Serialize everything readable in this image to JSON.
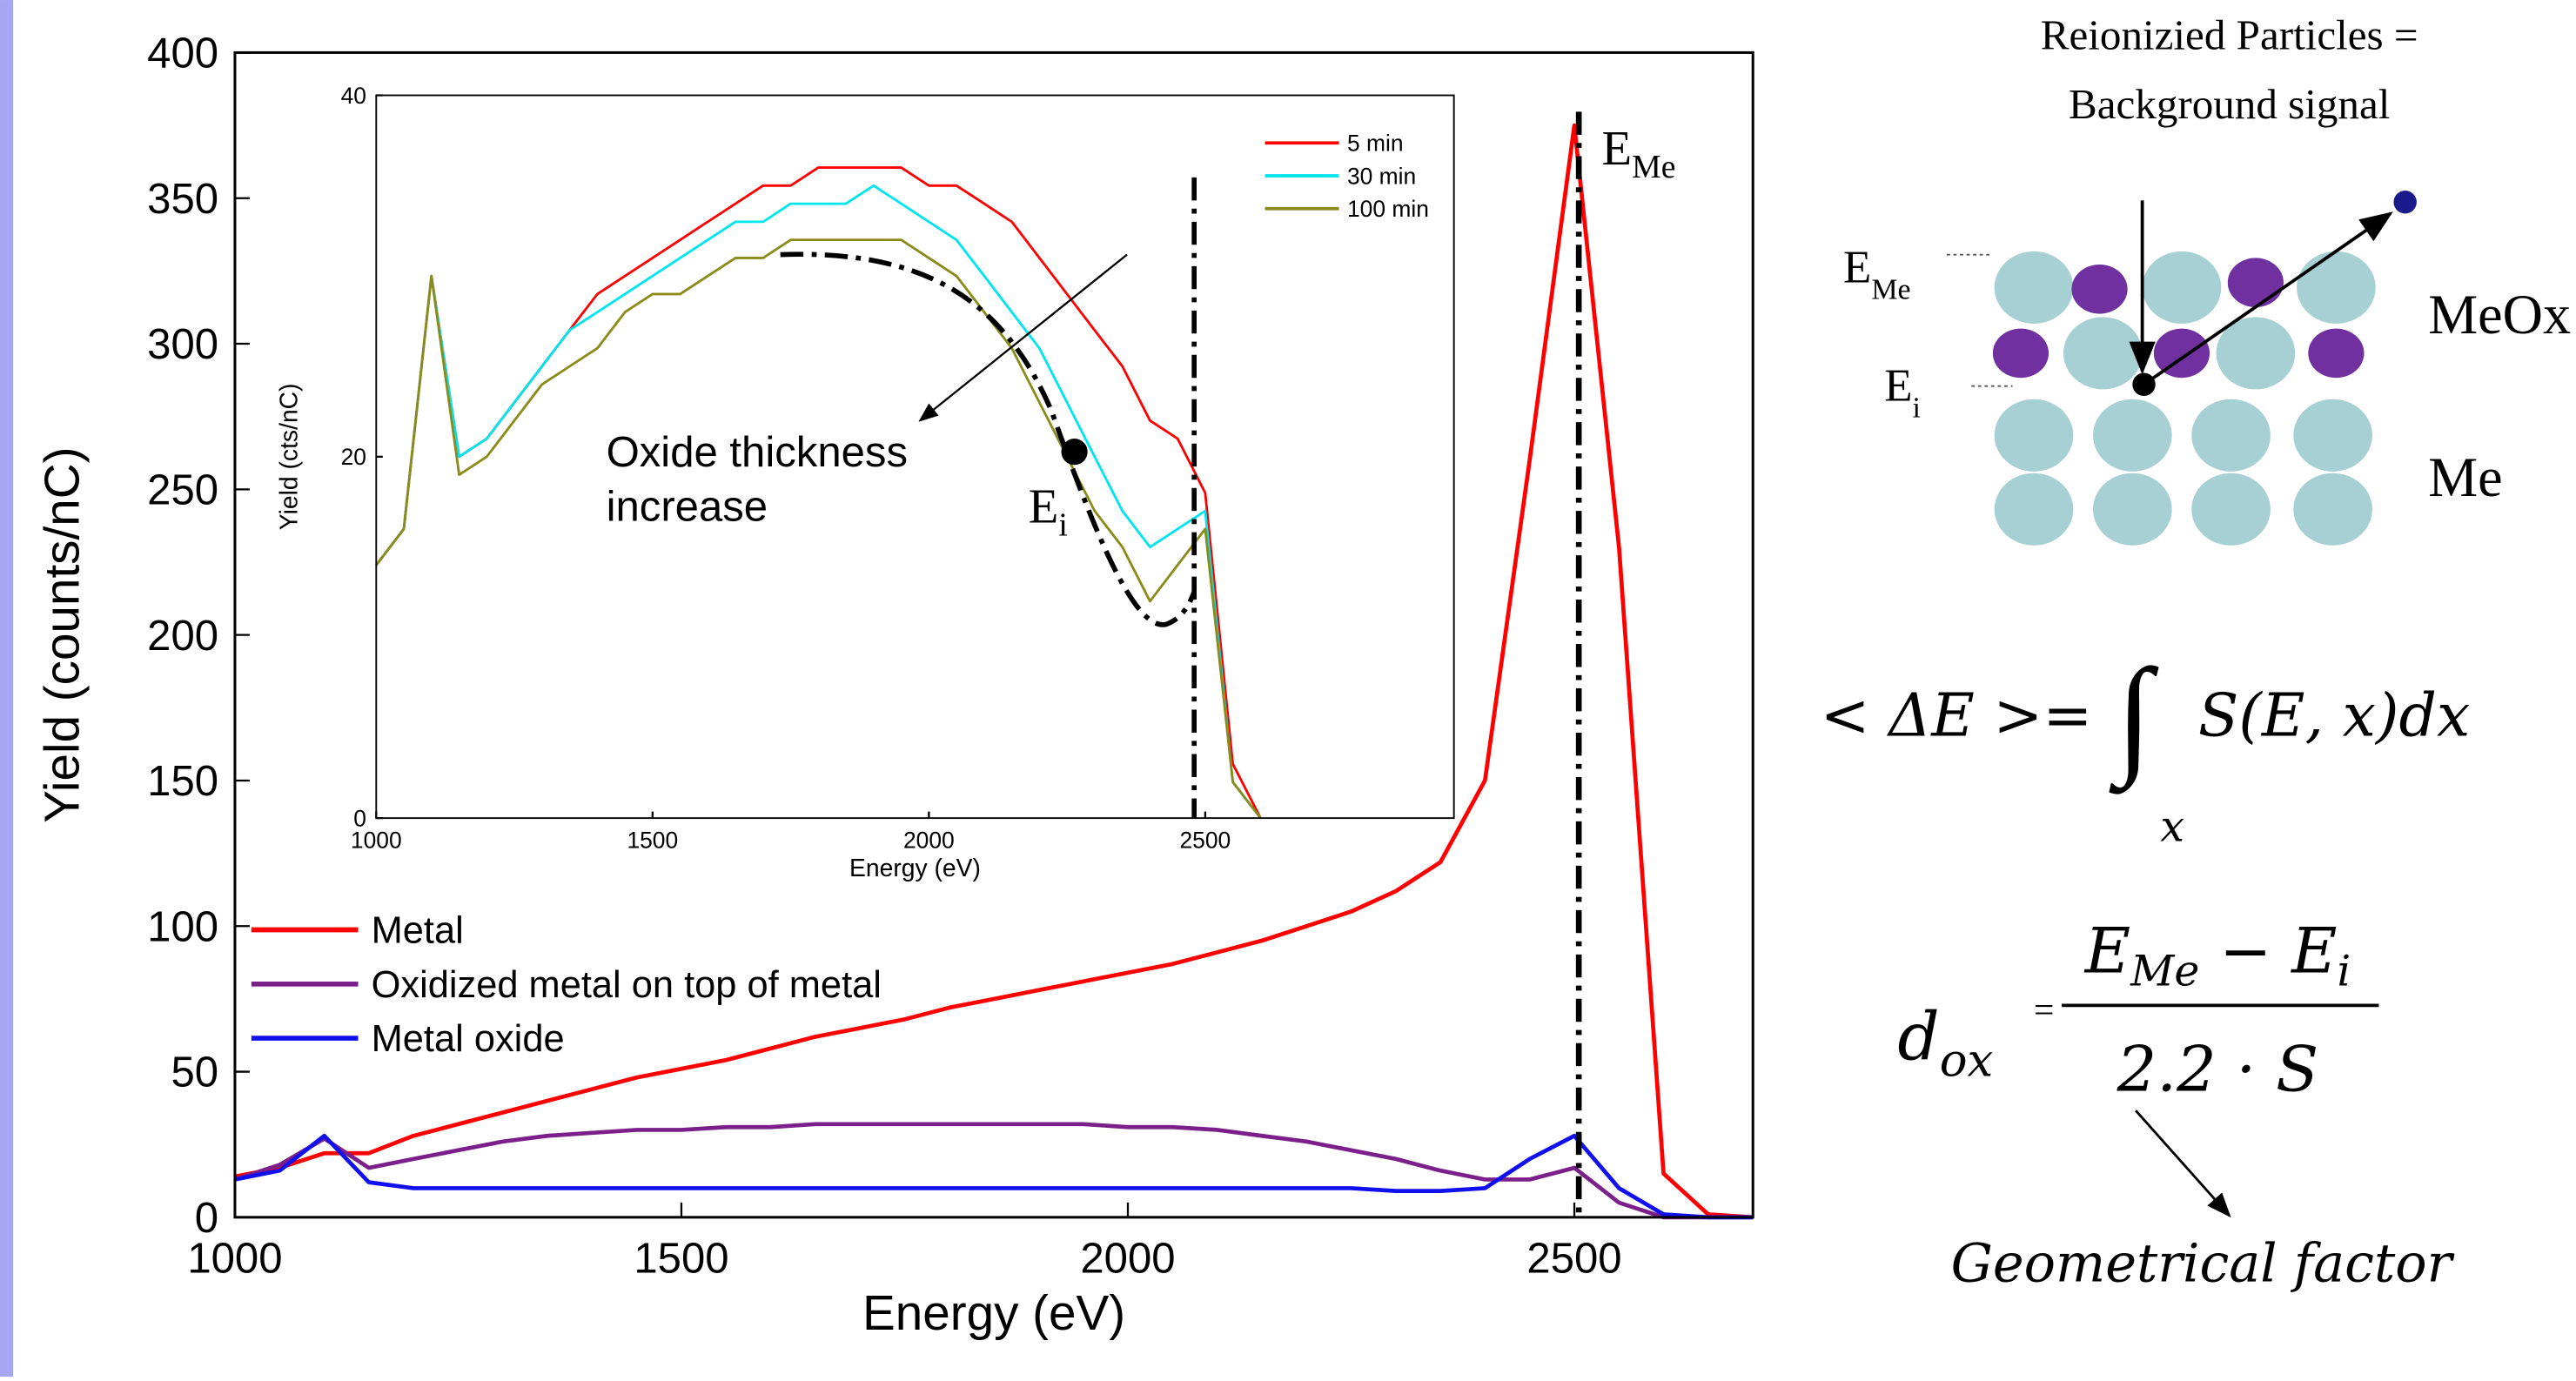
{
  "chart_data": [
    {
      "type": "line",
      "x_label": "Energy (eV)",
      "y_label": "Yield (counts/nC)",
      "xlim": [
        1000,
        2700
      ],
      "ylim": [
        0,
        400
      ],
      "xticks": [
        1000,
        1500,
        2000,
        2500
      ],
      "yticks": [
        0,
        50,
        100,
        150,
        200,
        250,
        300,
        350,
        400
      ],
      "x": [
        1000,
        1050,
        1100,
        1150,
        1200,
        1250,
        1300,
        1350,
        1400,
        1450,
        1500,
        1550,
        1600,
        1650,
        1700,
        1750,
        1800,
        1850,
        1900,
        1950,
        2000,
        2050,
        2100,
        2150,
        2200,
        2250,
        2300,
        2350,
        2400,
        2450,
        2500,
        2550,
        2600,
        2650,
        2700
      ],
      "series": [
        {
          "name": "Metal",
          "color": "#ff0000",
          "values": [
            14,
            17,
            22,
            22,
            28,
            32,
            36,
            40,
            44,
            48,
            51,
            54,
            58,
            62,
            65,
            68,
            72,
            75,
            78,
            81,
            84,
            87,
            91,
            95,
            100,
            105,
            112,
            122,
            150,
            260,
            375,
            230,
            15,
            1,
            0
          ]
        },
        {
          "name": "Oxidized metal on top of metal",
          "color": "#7b1f8a",
          "values": [
            13,
            18,
            27,
            17,
            20,
            23,
            26,
            28,
            29,
            30,
            30,
            31,
            31,
            32,
            32,
            32,
            32,
            32,
            32,
            32,
            31,
            31,
            30,
            28,
            26,
            23,
            20,
            16,
            13,
            13,
            17,
            5,
            0,
            0,
            0
          ]
        },
        {
          "name": "Metal oxide",
          "color": "#1010ee",
          "values": [
            13,
            16,
            28,
            12,
            10,
            10,
            10,
            10,
            10,
            10,
            10,
            10,
            10,
            10,
            10,
            10,
            10,
            10,
            10,
            10,
            10,
            10,
            10,
            10,
            10,
            10,
            9,
            9,
            10,
            20,
            28,
            10,
            1,
            0,
            0
          ]
        }
      ],
      "vline_x": 2505,
      "legend": "lower left",
      "annotation": {
        "base": "E",
        "sub": "Me"
      }
    },
    {
      "type": "line",
      "x_label": "Energy (eV)",
      "y_label": "Yield (cts/nC)",
      "xlim": [
        1000,
        2950
      ],
      "ylim": [
        0,
        40
      ],
      "xticks": [
        1000,
        1500,
        2000,
        2500
      ],
      "yticks": [
        0,
        20,
        40
      ],
      "x": [
        1000,
        1050,
        1100,
        1150,
        1200,
        1250,
        1300,
        1350,
        1400,
        1450,
        1500,
        1550,
        1600,
        1650,
        1700,
        1750,
        1800,
        1850,
        1900,
        1950,
        2000,
        2050,
        2100,
        2150,
        2200,
        2250,
        2300,
        2350,
        2400,
        2450,
        2500,
        2550,
        2600
      ],
      "series": [
        {
          "name": "5 min",
          "color": "#ff0000",
          "values": [
            14,
            16,
            30,
            20,
            21,
            23,
            25,
            27,
            29,
            30,
            31,
            32,
            33,
            34,
            35,
            35,
            36,
            36,
            36,
            36,
            35,
            35,
            34,
            33,
            31,
            29,
            27,
            25,
            22,
            21,
            18,
            3,
            0
          ]
        },
        {
          "name": "30 min",
          "color": "#00e5ee",
          "values": [
            14,
            16,
            30,
            20,
            21,
            23,
            25,
            27,
            28,
            29,
            30,
            31,
            32,
            33,
            33,
            34,
            34,
            34,
            35,
            34,
            33,
            32,
            30,
            28,
            26,
            23,
            20,
            17,
            15,
            16,
            17,
            2,
            0
          ]
        },
        {
          "name": "100 min",
          "color": "#8b8b1a",
          "values": [
            14,
            16,
            30,
            19,
            20,
            22,
            24,
            25,
            26,
            28,
            29,
            29,
            30,
            31,
            31,
            32,
            32,
            32,
            32,
            32,
            31,
            30,
            28,
            26,
            23,
            20,
            17,
            15,
            12,
            14,
            16,
            2,
            0
          ]
        }
      ],
      "vline_x": 2480,
      "legend": "upper right",
      "annotation": {
        "lines": [
          "Oxide thickness",
          "increase"
        ],
        "point": {
          "base": "E",
          "sub": "i"
        }
      }
    }
  ],
  "diagram": {
    "title": [
      "Reionizied Particles =",
      "Background signal"
    ],
    "e_me": {
      "base": "E",
      "sub": "Me"
    },
    "e_i": {
      "base": "E",
      "sub": "i"
    },
    "layer_top": "MeOx",
    "layer_bottom": "Me",
    "formula1": {
      "lhs": "< ΔE >=",
      "integral": "∫",
      "integrand": "S(E, x)dx",
      "limit": "x"
    },
    "formula2": {
      "d": "d",
      "d_sub": "ox",
      "eq": "=",
      "num_e1": "E",
      "num_sub1": "Me",
      "num_minus": " − E",
      "num_sub2": "i",
      "den": "2.2 · S"
    },
    "note": "Geometrical factor"
  }
}
